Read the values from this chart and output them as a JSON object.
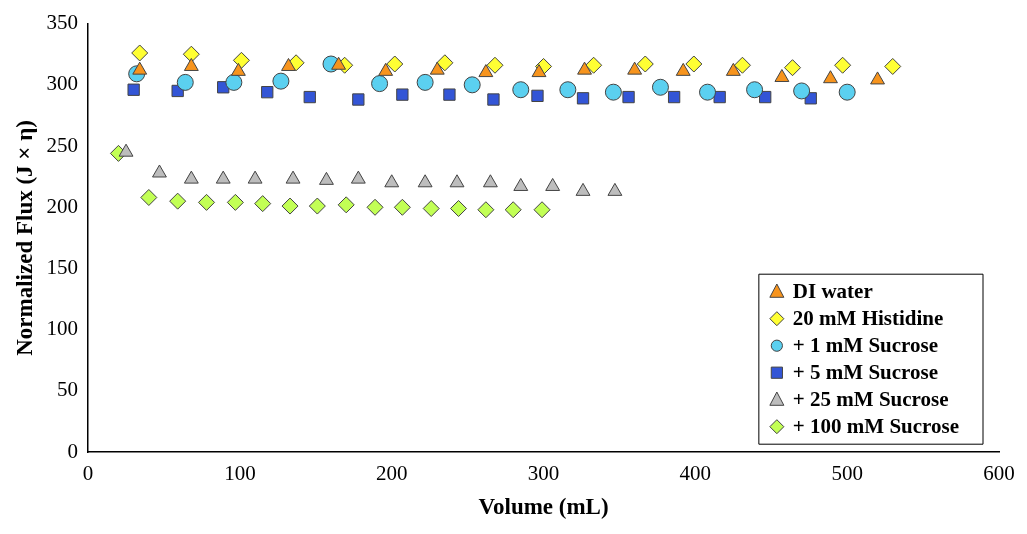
{
  "chart_data": {
    "type": "scatter",
    "xlabel": "Volume (mL)",
    "ylabel": "Normalized Flux (J × η)",
    "xlim": [
      0,
      600
    ],
    "xticks": [
      0,
      100,
      200,
      300,
      400,
      500,
      600
    ],
    "ylim": [
      0,
      350
    ],
    "yticks": [
      0,
      50,
      100,
      150,
      200,
      250,
      300,
      350
    ],
    "grid": false,
    "legend": "bottom right",
    "series": [
      {
        "name": "DI water",
        "color": "#f7941d",
        "marker": "triangle",
        "x": [
          34,
          68,
          99,
          132,
          165,
          196,
          230,
          262,
          297,
          327,
          360,
          392,
          425,
          457,
          489,
          520
        ],
        "values": [
          312,
          315,
          311,
          315,
          316,
          311,
          312,
          310,
          310,
          312,
          312,
          311,
          311,
          306,
          305,
          304
        ]
      },
      {
        "name": "20 mM Histidine",
        "color": "#ffff33",
        "marker": "diamond",
        "x": [
          34,
          68,
          101,
          137,
          169,
          202,
          235,
          268,
          300,
          333,
          367,
          399,
          431,
          464,
          497,
          530
        ],
        "values": [
          326,
          325,
          320,
          318,
          316,
          317,
          318,
          316,
          315,
          316,
          317,
          317,
          316,
          314,
          316,
          315
        ]
      },
      {
        "name": "+ 1 mM Sucrose",
        "color": "#5bd0f0",
        "marker": "circle",
        "x": [
          32,
          64,
          96,
          127,
          160,
          192,
          222,
          253,
          285,
          316,
          346,
          377,
          408,
          439,
          470,
          500
        ],
        "values": [
          309,
          302,
          302,
          303,
          317,
          301,
          302,
          300,
          296,
          296,
          294,
          298,
          294,
          296,
          295,
          294
        ]
      },
      {
        "name": "+ 5 mM Sucrose",
        "color": "#3355d6",
        "marker": "square",
        "x": [
          30,
          59,
          89,
          118,
          146,
          178,
          207,
          238,
          267,
          296,
          326,
          356,
          386,
          416,
          446,
          476
        ],
        "values": [
          296,
          295,
          298,
          294,
          290,
          288,
          292,
          292,
          288,
          291,
          289,
          290,
          290,
          290,
          290,
          289
        ]
      },
      {
        "name": "+ 25 mM Sucrose",
        "color": "#bdbdbd",
        "marker": "triangle",
        "x": [
          25,
          47,
          68,
          89,
          110,
          135,
          157,
          178,
          200,
          222,
          243,
          265,
          285,
          306,
          326,
          347
        ],
        "values": [
          245,
          228,
          223,
          223,
          223,
          223,
          222,
          223,
          220,
          220,
          220,
          220,
          217,
          217,
          213,
          213
        ]
      },
      {
        "name": "+ 100 mM Sucrose",
        "color": "#c2ff55",
        "marker": "diamond",
        "x": [
          20,
          40,
          59,
          78,
          97,
          115,
          133,
          151,
          170,
          189,
          207,
          226,
          244,
          262,
          280,
          299
        ],
        "values": [
          244,
          208,
          205,
          204,
          204,
          203,
          201,
          201,
          202,
          200,
          200,
          199,
          199,
          198,
          198,
          198
        ]
      }
    ]
  }
}
